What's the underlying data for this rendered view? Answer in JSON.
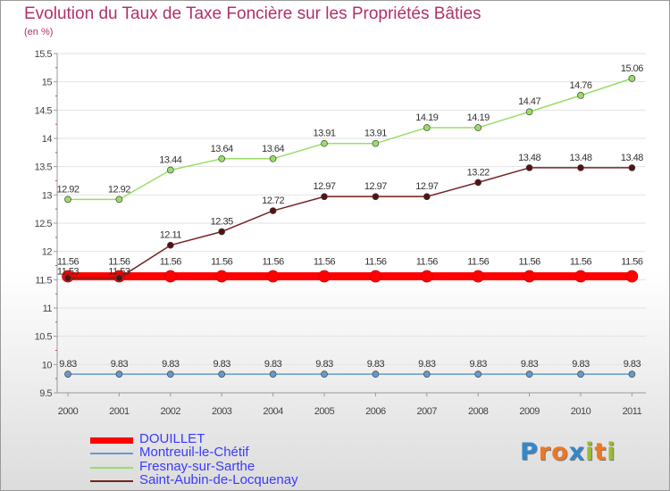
{
  "header": {
    "title": "Evolution du Taux de Taxe Foncière sur les Propriétés Bâties",
    "subtitle": "(en %)"
  },
  "chart_data": {
    "type": "line",
    "title": "Evolution du Taux de Taxe Foncière sur les Propriétés Bâties",
    "ylabel": "(en %)",
    "xlabel": "",
    "categories": [
      "2000",
      "2001",
      "2002",
      "2003",
      "2004",
      "2005",
      "2006",
      "2007",
      "2008",
      "2009",
      "2010",
      "2011"
    ],
    "ylim": [
      9.5,
      15.5
    ],
    "yticks": [
      "9.5",
      "10",
      "10.5",
      "11",
      "11.5",
      "12",
      "12.5",
      "13",
      "13.5",
      "14",
      "14.5",
      "15",
      "15.5"
    ],
    "legend_position": "bottom-left",
    "series": [
      {
        "name": "DOUILLET",
        "color": "#ff0000",
        "style": "thick",
        "values": [
          11.56,
          11.56,
          11.56,
          11.56,
          11.56,
          11.56,
          11.56,
          11.56,
          11.56,
          11.56,
          11.56,
          11.56
        ],
        "labels": [
          "11.56",
          "11.56",
          "11.56",
          "11.56",
          "11.56",
          "11.56",
          "11.56",
          "11.56",
          "11.56",
          "11.56",
          "11.56",
          "11.56"
        ]
      },
      {
        "name": "Montreuil-le-Chétif",
        "color": "#6699cc",
        "style": "normal",
        "values": [
          9.83,
          9.83,
          9.83,
          9.83,
          9.83,
          9.83,
          9.83,
          9.83,
          9.83,
          9.83,
          9.83,
          9.83
        ],
        "labels": [
          "9.83",
          "9.83",
          "9.83",
          "9.83",
          "9.83",
          "9.83",
          "9.83",
          "9.83",
          "9.83",
          "9.83",
          "9.83",
          "9.83"
        ]
      },
      {
        "name": "Fresnay-sur-Sarthe",
        "color": "#99dd66",
        "style": "normal",
        "values": [
          12.92,
          12.92,
          13.44,
          13.64,
          13.64,
          13.91,
          13.91,
          14.19,
          14.19,
          14.47,
          14.76,
          15.06
        ],
        "labels": [
          "12.92",
          "12.92",
          "13.44",
          "13.64",
          "13.64",
          "13.91",
          "13.91",
          "14.19",
          "14.19",
          "14.47",
          "14.76",
          "15.06"
        ]
      },
      {
        "name": "Saint-Aubin-de-Locquenay",
        "color": "#772222",
        "style": "normal",
        "values": [
          11.53,
          11.53,
          12.11,
          12.35,
          12.72,
          12.97,
          12.97,
          12.97,
          13.22,
          13.48,
          13.48,
          13.48
        ],
        "labels": [
          "11.53",
          "11.53",
          "12.11",
          "12.35",
          "12.72",
          "12.97",
          "12.97",
          "12.97",
          "13.22",
          "13.48",
          "13.48",
          "13.48"
        ]
      }
    ]
  },
  "legend": {
    "items": [
      {
        "label": "DOUILLET",
        "color": "#ff0000"
      },
      {
        "label": "Montreuil-le-Chétif",
        "color": "#6699cc"
      },
      {
        "label": "Fresnay-sur-Sarthe",
        "color": "#99dd66"
      },
      {
        "label": "Saint-Aubin-de-Locquenay",
        "color": "#772222"
      }
    ]
  },
  "logo": {
    "text": "Proxiti",
    "letters": [
      {
        "ch": "P",
        "color": "#3388cc"
      },
      {
        "ch": "r",
        "color": "#ee7722"
      },
      {
        "ch": "o",
        "color": "#ee7722"
      },
      {
        "ch": "x",
        "color": "#3388cc"
      },
      {
        "ch": "i",
        "color": "#99bb33"
      },
      {
        "ch": "t",
        "color": "#ee7722"
      },
      {
        "ch": "i",
        "color": "#99bb33"
      }
    ]
  }
}
